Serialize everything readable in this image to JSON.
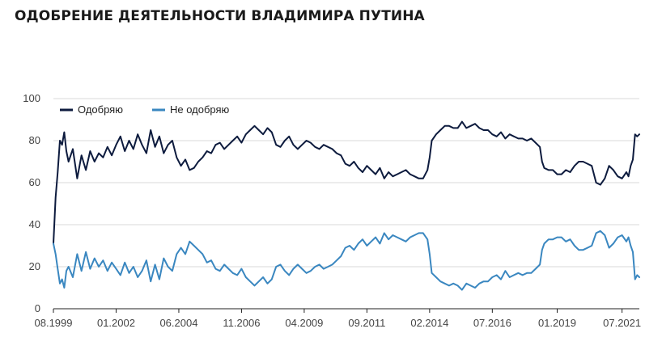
{
  "title": "ОДОБРЕНИЕ ДЕЯТЕЛЬНОСТИ ВЛАДИМИРА ПУТИНА",
  "chart_data": {
    "type": "line",
    "title": "ОДОБРЕНИЕ ДЕЯТЕЛЬНОСТИ ВЛАДИМИРА ПУТИНА",
    "xlabel": "",
    "ylabel": "",
    "x_range": [
      "1999-08",
      "2022-03"
    ],
    "ylim": [
      0,
      100
    ],
    "y_ticks": [
      0,
      20,
      40,
      60,
      80,
      100
    ],
    "x_ticks": [
      "08.1999",
      "01.2002",
      "06.2004",
      "11.2006",
      "04.2009",
      "09.2011",
      "02.2014",
      "07.2016",
      "01.2019",
      "07.2021"
    ],
    "grid": "horizontal",
    "legend_position": "top-left",
    "series": [
      {
        "name": "Одобряю",
        "color": "#0d1b3e",
        "x": [
          "1999-08",
          "1999-09",
          "1999-10",
          "1999-11",
          "1999-12",
          "2000-01",
          "2000-02",
          "2000-03",
          "2000-05",
          "2000-07",
          "2000-09",
          "2000-11",
          "2001-01",
          "2001-03",
          "2001-05",
          "2001-07",
          "2001-09",
          "2001-11",
          "2002-01",
          "2002-03",
          "2002-05",
          "2002-07",
          "2002-09",
          "2002-11",
          "2003-01",
          "2003-03",
          "2003-05",
          "2003-07",
          "2003-09",
          "2003-11",
          "2004-01",
          "2004-03",
          "2004-05",
          "2004-07",
          "2004-09",
          "2004-11",
          "2005-01",
          "2005-03",
          "2005-05",
          "2005-07",
          "2005-09",
          "2005-11",
          "2006-01",
          "2006-03",
          "2006-05",
          "2006-07",
          "2006-09",
          "2006-11",
          "2007-01",
          "2007-03",
          "2007-05",
          "2007-07",
          "2007-09",
          "2007-11",
          "2008-01",
          "2008-03",
          "2008-05",
          "2008-07",
          "2008-09",
          "2008-11",
          "2009-01",
          "2009-03",
          "2009-05",
          "2009-07",
          "2009-09",
          "2009-11",
          "2010-01",
          "2010-03",
          "2010-05",
          "2010-07",
          "2010-09",
          "2010-11",
          "2011-01",
          "2011-03",
          "2011-05",
          "2011-07",
          "2011-09",
          "2011-11",
          "2012-01",
          "2012-03",
          "2012-05",
          "2012-07",
          "2012-09",
          "2012-11",
          "2013-01",
          "2013-03",
          "2013-05",
          "2013-07",
          "2013-09",
          "2013-11",
          "2014-01",
          "2014-02",
          "2014-03",
          "2014-05",
          "2014-07",
          "2014-09",
          "2014-11",
          "2015-01",
          "2015-03",
          "2015-05",
          "2015-07",
          "2015-09",
          "2015-11",
          "2016-01",
          "2016-03",
          "2016-05",
          "2016-07",
          "2016-09",
          "2016-11",
          "2017-01",
          "2017-03",
          "2017-05",
          "2017-07",
          "2017-09",
          "2017-11",
          "2018-01",
          "2018-03",
          "2018-05",
          "2018-06",
          "2018-07",
          "2018-09",
          "2018-11",
          "2019-01",
          "2019-03",
          "2019-05",
          "2019-07",
          "2019-09",
          "2019-11",
          "2020-01",
          "2020-03",
          "2020-05",
          "2020-07",
          "2020-09",
          "2020-11",
          "2021-01",
          "2021-03",
          "2021-05",
          "2021-07",
          "2021-09",
          "2021-10",
          "2021-11",
          "2021-12",
          "2022-01",
          "2022-02",
          "2022-03"
        ],
        "values": [
          31,
          53,
          65,
          80,
          78,
          84,
          75,
          70,
          76,
          62,
          73,
          66,
          75,
          70,
          74,
          72,
          77,
          73,
          78,
          82,
          75,
          80,
          76,
          83,
          78,
          74,
          85,
          77,
          82,
          74,
          78,
          80,
          72,
          68,
          71,
          66,
          67,
          70,
          72,
          75,
          74,
          78,
          79,
          76,
          78,
          80,
          82,
          79,
          83,
          85,
          87,
          85,
          83,
          86,
          84,
          78,
          77,
          80,
          82,
          78,
          76,
          78,
          80,
          79,
          77,
          76,
          78,
          77,
          76,
          74,
          73,
          69,
          68,
          70,
          67,
          65,
          68,
          66,
          64,
          67,
          62,
          65,
          63,
          64,
          65,
          66,
          64,
          63,
          62,
          62,
          66,
          72,
          80,
          83,
          85,
          87,
          87,
          86,
          86,
          89,
          86,
          87,
          88,
          86,
          85,
          85,
          83,
          82,
          84,
          81,
          83,
          82,
          81,
          81,
          80,
          81,
          79,
          77,
          70,
          67,
          66,
          66,
          64,
          64,
          66,
          65,
          68,
          70,
          70,
          69,
          68,
          60,
          59,
          62,
          68,
          66,
          63,
          62,
          65,
          63,
          68,
          71,
          83,
          82,
          83
        ]
      },
      {
        "name": "Не одобряю",
        "color": "#3a87c0",
        "x": [
          "1999-08",
          "1999-09",
          "1999-10",
          "1999-11",
          "1999-12",
          "2000-01",
          "2000-02",
          "2000-03",
          "2000-05",
          "2000-07",
          "2000-09",
          "2000-11",
          "2001-01",
          "2001-03",
          "2001-05",
          "2001-07",
          "2001-09",
          "2001-11",
          "2002-01",
          "2002-03",
          "2002-05",
          "2002-07",
          "2002-09",
          "2002-11",
          "2003-01",
          "2003-03",
          "2003-05",
          "2003-07",
          "2003-09",
          "2003-11",
          "2004-01",
          "2004-03",
          "2004-05",
          "2004-07",
          "2004-09",
          "2004-11",
          "2005-01",
          "2005-03",
          "2005-05",
          "2005-07",
          "2005-09",
          "2005-11",
          "2006-01",
          "2006-03",
          "2006-05",
          "2006-07",
          "2006-09",
          "2006-11",
          "2007-01",
          "2007-03",
          "2007-05",
          "2007-07",
          "2007-09",
          "2007-11",
          "2008-01",
          "2008-03",
          "2008-05",
          "2008-07",
          "2008-09",
          "2008-11",
          "2009-01",
          "2009-03",
          "2009-05",
          "2009-07",
          "2009-09",
          "2009-11",
          "2010-01",
          "2010-03",
          "2010-05",
          "2010-07",
          "2010-09",
          "2010-11",
          "2011-01",
          "2011-03",
          "2011-05",
          "2011-07",
          "2011-09",
          "2011-11",
          "2012-01",
          "2012-03",
          "2012-05",
          "2012-07",
          "2012-09",
          "2012-11",
          "2013-01",
          "2013-03",
          "2013-05",
          "2013-07",
          "2013-09",
          "2013-11",
          "2014-01",
          "2014-02",
          "2014-03",
          "2014-05",
          "2014-07",
          "2014-09",
          "2014-11",
          "2015-01",
          "2015-03",
          "2015-05",
          "2015-07",
          "2015-09",
          "2015-11",
          "2016-01",
          "2016-03",
          "2016-05",
          "2016-07",
          "2016-09",
          "2016-11",
          "2017-01",
          "2017-03",
          "2017-05",
          "2017-07",
          "2017-09",
          "2017-11",
          "2018-01",
          "2018-03",
          "2018-05",
          "2018-06",
          "2018-07",
          "2018-09",
          "2018-11",
          "2019-01",
          "2019-03",
          "2019-05",
          "2019-07",
          "2019-09",
          "2019-11",
          "2020-01",
          "2020-03",
          "2020-05",
          "2020-07",
          "2020-09",
          "2020-11",
          "2021-01",
          "2021-03",
          "2021-05",
          "2021-07",
          "2021-09",
          "2021-10",
          "2021-11",
          "2021-12",
          "2022-01",
          "2022-02",
          "2022-03"
        ],
        "values": [
          31,
          26,
          19,
          12,
          14,
          10,
          18,
          20,
          15,
          26,
          18,
          27,
          19,
          24,
          20,
          23,
          18,
          22,
          19,
          16,
          22,
          17,
          20,
          15,
          18,
          23,
          13,
          21,
          14,
          24,
          20,
          18,
          26,
          29,
          26,
          32,
          30,
          28,
          26,
          22,
          23,
          19,
          18,
          21,
          19,
          17,
          16,
          19,
          15,
          13,
          11,
          13,
          15,
          12,
          14,
          20,
          21,
          18,
          16,
          19,
          21,
          19,
          17,
          18,
          20,
          21,
          19,
          20,
          21,
          23,
          25,
          29,
          30,
          28,
          31,
          33,
          30,
          32,
          34,
          31,
          36,
          33,
          35,
          34,
          33,
          32,
          34,
          35,
          36,
          36,
          33,
          26,
          17,
          15,
          13,
          12,
          11,
          12,
          11,
          9,
          12,
          11,
          10,
          12,
          13,
          13,
          15,
          16,
          14,
          18,
          15,
          16,
          17,
          16,
          17,
          17,
          19,
          21,
          28,
          31,
          33,
          33,
          34,
          34,
          32,
          33,
          30,
          28,
          28,
          29,
          30,
          36,
          37,
          35,
          29,
          31,
          34,
          35,
          32,
          34,
          30,
          27,
          14,
          16,
          15
        ]
      }
    ]
  }
}
